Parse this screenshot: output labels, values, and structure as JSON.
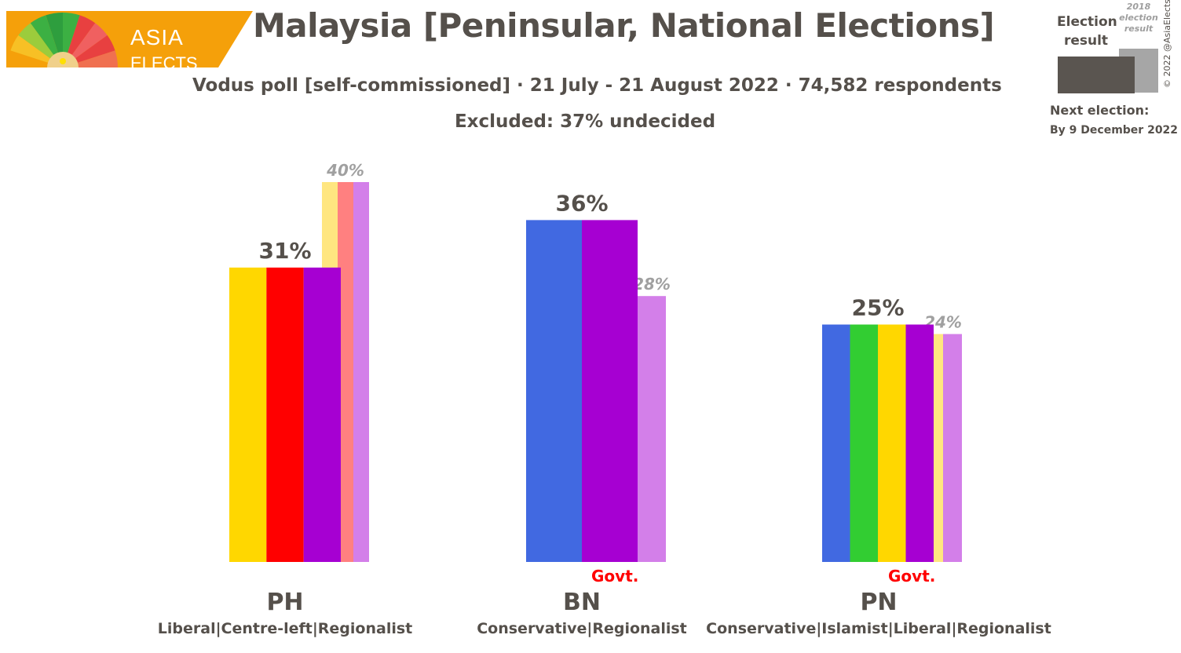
{
  "header": {
    "logo_text_top": "ASIA",
    "logo_text_bottom": "ELECTS",
    "title": "Malaysia [Peninsular, National Elections]",
    "subtitle": "Vodus poll [self-commissioned] · 21 July - 21 August 2022 · 74,582 respondents",
    "excluded": "Excluded: 37% undecided"
  },
  "legend": {
    "current_label": "Election result",
    "previous_label": "2018 election result",
    "copyright": "© 2022 @AsiaElects",
    "next_election_label": "Next election:",
    "next_election_date": "By 9 December 2022"
  },
  "chart_data": {
    "type": "bar",
    "categories": [
      "PH",
      "BN",
      "PN"
    ],
    "descriptions": [
      "Liberal|Centre-left|Regionalist",
      "Conservative|Regionalist",
      "Conservative|Islamist|Liberal|Regionalist"
    ],
    "series": [
      {
        "name": "Election result",
        "values": [
          31,
          36,
          25
        ],
        "labels": [
          "31%",
          "36%",
          "25%"
        ]
      },
      {
        "name": "2018 election result",
        "values": [
          40,
          28,
          24
        ],
        "labels": [
          "40%",
          "28%",
          "24%"
        ]
      }
    ],
    "current_colors": [
      [
        "#ffd700",
        "#ff0000",
        "#a600d2"
      ],
      [
        "#4169e1",
        "#a600d2"
      ],
      [
        "#4169e1",
        "#32cd32",
        "#ffd700",
        "#a600d2"
      ]
    ],
    "previous_colors": [
      [
        "#ffe680",
        "#ff8080",
        "#d37fe9"
      ],
      [
        "#d37fe9"
      ],
      [
        "#ffe680",
        "#d37fe9"
      ]
    ],
    "government": [
      false,
      true,
      true
    ],
    "government_label": "Govt.",
    "ylim": [
      0,
      40
    ]
  }
}
